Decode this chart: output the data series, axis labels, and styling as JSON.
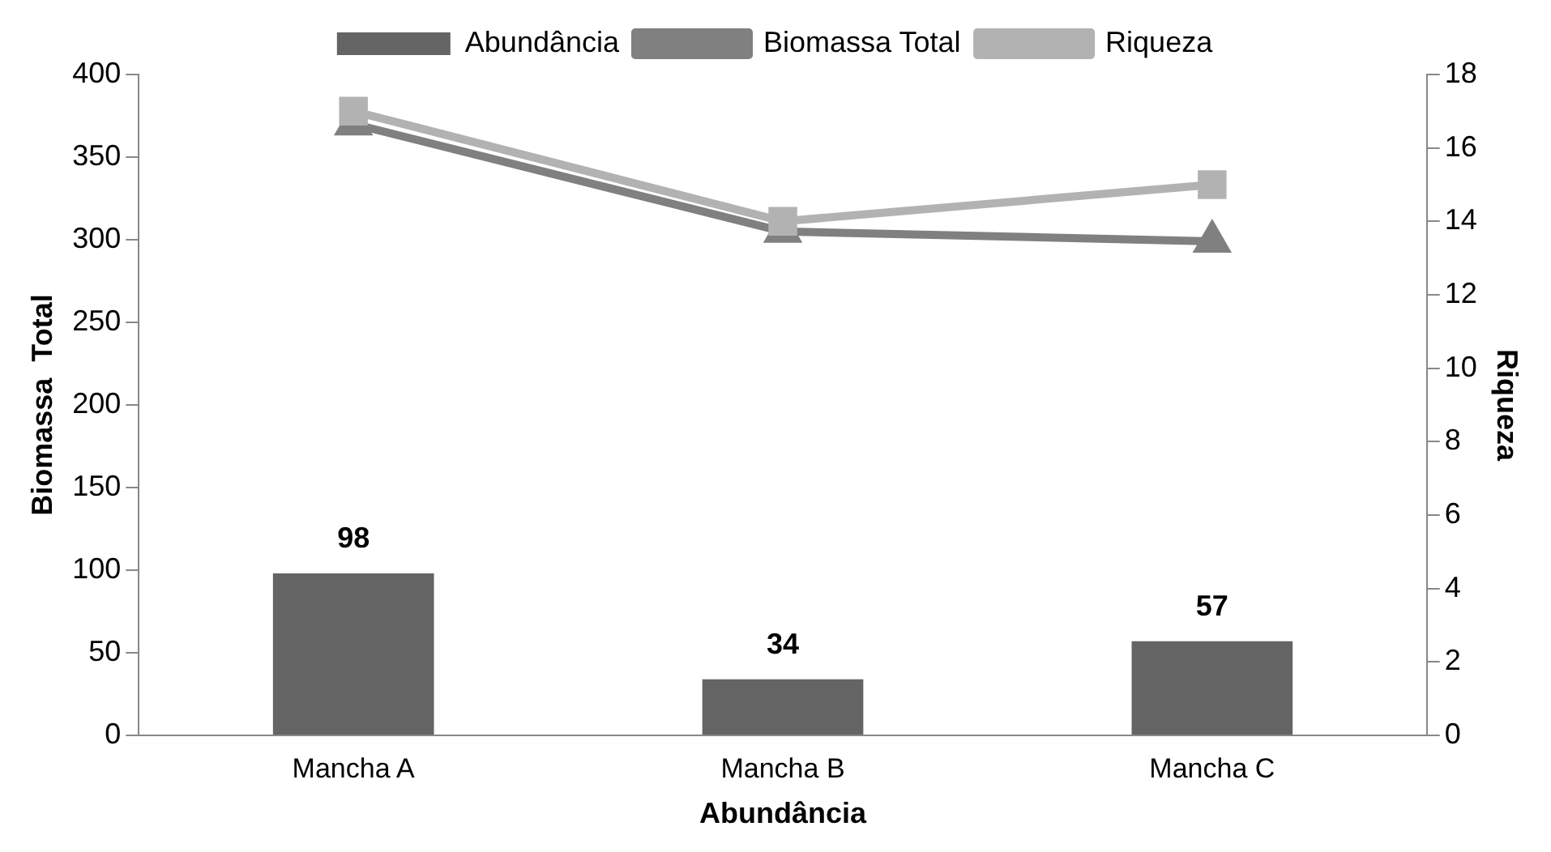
{
  "chart_data": {
    "type": "bar",
    "categories": [
      "Mancha A",
      "Mancha B",
      "Mancha C"
    ],
    "xlabel": "Abundância",
    "ylabel": "Biomassa  Total",
    "y2label": "Riqueza",
    "ylim": [
      0,
      400
    ],
    "yticks": [
      0,
      50,
      100,
      150,
      200,
      250,
      300,
      350,
      400
    ],
    "y2lim": [
      0,
      18
    ],
    "y2ticks": [
      0,
      2,
      4,
      6,
      8,
      10,
      12,
      14,
      16,
      18
    ],
    "grid": false,
    "legend": "top",
    "series": [
      {
        "name": "Abundância",
        "color": "#646464",
        "values": [
          98,
          34,
          57
        ],
        "value_labels": [
          "98",
          "34",
          "57"
        ]
      },
      {
        "name": "Biomassa Total",
        "type": "line",
        "color": "#808080",
        "marker": "triangle",
        "values": [
          370,
          305,
          299
        ]
      },
      {
        "name": "Riqueza",
        "type": "line",
        "color": "#b2b2b2",
        "marker": "square",
        "axis": "y2",
        "values": [
          17,
          14,
          15
        ]
      }
    ]
  }
}
